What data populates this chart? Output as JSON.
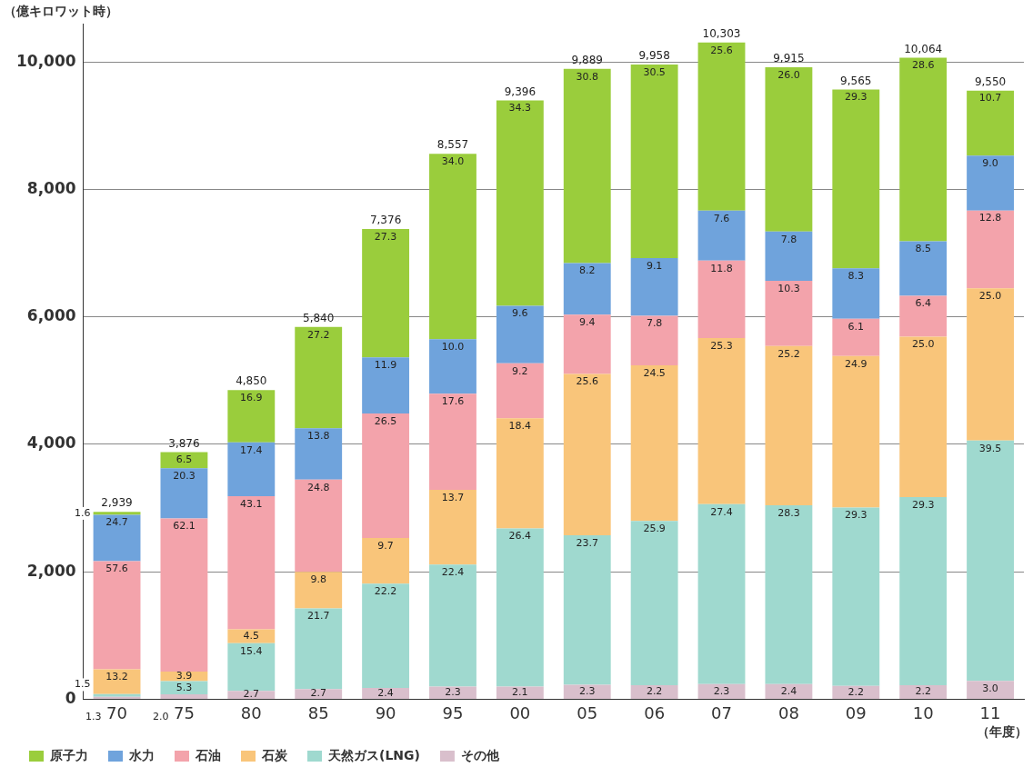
{
  "chart_data": {
    "type": "bar",
    "stacked": true,
    "ylabel": "（億キロワット時）",
    "xlabel": "（年度）",
    "categories": [
      "70",
      "75",
      "80",
      "85",
      "90",
      "95",
      "00",
      "05",
      "06",
      "07",
      "08",
      "09",
      "10",
      "11"
    ],
    "ylim": [
      0,
      10600
    ],
    "yticks": [
      {
        "value": 0,
        "label": "0"
      },
      {
        "value": 2000,
        "label": "2,000"
      },
      {
        "value": 4000,
        "label": "4,000"
      },
      {
        "value": 6000,
        "label": "6,000"
      },
      {
        "value": 8000,
        "label": "8,000"
      },
      {
        "value": 10000,
        "label": "10,000"
      }
    ],
    "grid": "y",
    "legend": "bottom left",
    "totals": [
      "2,939",
      "3,876",
      "4,850",
      "5,840",
      "7,376",
      "8,557",
      "9,396",
      "9,889",
      "9,958",
      "10,303",
      "9,915",
      "9,565",
      "10,064",
      "9,550"
    ],
    "series": [
      {
        "name": "その他",
        "color": "#d9bfcc",
        "values": [
          38,
          78,
          131,
          158,
          177,
          197,
          197,
          227,
          219,
          237,
          238,
          210,
          221,
          287
        ]
      },
      {
        "name": "天然ガス(LNG)",
        "color": "#9fd9cf",
        "values": [
          44,
          205,
          747,
          1267,
          1637,
          1917,
          2481,
          2344,
          2579,
          2822,
          2806,
          2798,
          2950,
          3771
        ]
      },
      {
        "name": "石炭",
        "color": "#f9c57a",
        "values": [
          388,
          151,
          218,
          572,
          715,
          1172,
          1729,
          2532,
          2440,
          2607,
          2499,
          2377,
          2516,
          2388
        ]
      },
      {
        "name": "石油",
        "color": "#f3a3ab",
        "values": [
          1696,
          2403,
          2090,
          1448,
          1955,
          1506,
          864,
          930,
          777,
          1216,
          1021,
          583,
          644,
          1222
        ]
      },
      {
        "name": "水力",
        "color": "#6fa3dc",
        "values": [
          726,
          787,
          844,
          806,
          878,
          856,
          902,
          811,
          906,
          783,
          773,
          794,
          855,
          860
        ]
      },
      {
        "name": "原子力",
        "color": "#9acd3c",
        "values": [
          47,
          252,
          820,
          1589,
          2014,
          2909,
          3223,
          3045,
          3037,
          2638,
          2578,
          2803,
          2878,
          1022
        ]
      }
    ],
    "annotations": [
      {
        "text": "1.3",
        "x": "70",
        "y": 38
      },
      {
        "text": "1.5",
        "x": "70",
        "y": 82
      },
      {
        "text": "13.2",
        "x": "70",
        "y": 470
      },
      {
        "text": "57.6",
        "x": "70",
        "y": 2166
      },
      {
        "text": "24.7",
        "x": "70",
        "y": 2892
      },
      {
        "text": "1.6",
        "x": "70",
        "y": 2939
      },
      {
        "text": "2.0",
        "x": "75",
        "y": 78
      },
      {
        "text": "5.3",
        "x": "75",
        "y": 283
      },
      {
        "text": "3.9",
        "x": "75",
        "y": 434
      },
      {
        "text": "62.1",
        "x": "75",
        "y": 2837
      },
      {
        "text": "20.3",
        "x": "75",
        "y": 3624
      },
      {
        "text": "6.5",
        "x": "75",
        "y": 3876
      },
      {
        "text": "2.7",
        "x": "80",
        "y": 131
      },
      {
        "text": "15.4",
        "x": "80",
        "y": 878
      },
      {
        "text": "4.5",
        "x": "80",
        "y": 1096
      },
      {
        "text": "43.1",
        "x": "80",
        "y": 3186
      },
      {
        "text": "17.4",
        "x": "80",
        "y": 4030
      },
      {
        "text": "16.9",
        "x": "80",
        "y": 4850
      },
      {
        "text": "2.7",
        "x": "85",
        "y": 158
      },
      {
        "text": "21.7",
        "x": "85",
        "y": 1425
      },
      {
        "text": "9.8",
        "x": "85",
        "y": 1997
      },
      {
        "text": "24.8",
        "x": "85",
        "y": 3445
      },
      {
        "text": "13.8",
        "x": "85",
        "y": 4251
      },
      {
        "text": "27.2",
        "x": "85",
        "y": 5840
      },
      {
        "text": "2.4",
        "x": "90",
        "y": 177
      },
      {
        "text": "22.2",
        "x": "90",
        "y": 1814
      },
      {
        "text": "9.7",
        "x": "90",
        "y": 2529
      },
      {
        "text": "26.5",
        "x": "90",
        "y": 4484
      },
      {
        "text": "11.9",
        "x": "90",
        "y": 5362
      },
      {
        "text": "27.3",
        "x": "90",
        "y": 7376
      },
      {
        "text": "2.3",
        "x": "95",
        "y": 197
      },
      {
        "text": "22.4",
        "x": "95",
        "y": 2114
      },
      {
        "text": "13.7",
        "x": "95",
        "y": 3286
      },
      {
        "text": "17.6",
        "x": "95",
        "y": 4792
      },
      {
        "text": "10.0",
        "x": "95",
        "y": 5648
      },
      {
        "text": "34.0",
        "x": "95",
        "y": 8557
      },
      {
        "text": "2.1",
        "x": "00",
        "y": 197
      },
      {
        "text": "26.4",
        "x": "00",
        "y": 2678
      },
      {
        "text": "18.4",
        "x": "00",
        "y": 4407
      },
      {
        "text": "9.2",
        "x": "00",
        "y": 5271
      },
      {
        "text": "9.6",
        "x": "00",
        "y": 6173
      },
      {
        "text": "34.3",
        "x": "00",
        "y": 9396
      },
      {
        "text": "2.3",
        "x": "05",
        "y": 227
      },
      {
        "text": "23.7",
        "x": "05",
        "y": 2571
      },
      {
        "text": "25.6",
        "x": "05",
        "y": 5103
      },
      {
        "text": "9.4",
        "x": "05",
        "y": 6033
      },
      {
        "text": "8.2",
        "x": "05",
        "y": 6844
      },
      {
        "text": "30.8",
        "x": "05",
        "y": 9889
      },
      {
        "text": "2.2",
        "x": "06",
        "y": 219
      },
      {
        "text": "25.9",
        "x": "06",
        "y": 2798
      },
      {
        "text": "24.5",
        "x": "06",
        "y": 5238
      },
      {
        "text": "7.8",
        "x": "06",
        "y": 6015
      },
      {
        "text": "9.1",
        "x": "06",
        "y": 6921
      },
      {
        "text": "30.5",
        "x": "06",
        "y": 9958
      },
      {
        "text": "2.3",
        "x": "07",
        "y": 237
      },
      {
        "text": "27.4",
        "x": "07",
        "y": 3059
      },
      {
        "text": "25.3",
        "x": "07",
        "y": 5666
      },
      {
        "text": "11.8",
        "x": "07",
        "y": 6882
      },
      {
        "text": "7.6",
        "x": "07",
        "y": 7665
      },
      {
        "text": "25.6",
        "x": "07",
        "y": 10303
      },
      {
        "text": "2.4",
        "x": "08",
        "y": 238
      },
      {
        "text": "28.3",
        "x": "08",
        "y": 3044
      },
      {
        "text": "25.2",
        "x": "08",
        "y": 5543
      },
      {
        "text": "10.3",
        "x": "08",
        "y": 6564
      },
      {
        "text": "7.8",
        "x": "08",
        "y": 7337
      },
      {
        "text": "26.0",
        "x": "08",
        "y": 9915
      },
      {
        "text": "2.2",
        "x": "09",
        "y": 210
      },
      {
        "text": "29.3",
        "x": "09",
        "y": 3008
      },
      {
        "text": "24.9",
        "x": "09",
        "y": 5385
      },
      {
        "text": "6.1",
        "x": "09",
        "y": 5968
      },
      {
        "text": "8.3",
        "x": "09",
        "y": 6762
      },
      {
        "text": "29.3",
        "x": "09",
        "y": 9565
      },
      {
        "text": "2.2",
        "x": "10",
        "y": 221
      },
      {
        "text": "29.3",
        "x": "10",
        "y": 3171
      },
      {
        "text": "25.0",
        "x": "10",
        "y": 5687
      },
      {
        "text": "6.4",
        "x": "10",
        "y": 6331
      },
      {
        "text": "8.5",
        "x": "10",
        "y": 7186
      },
      {
        "text": "28.6",
        "x": "10",
        "y": 10064
      },
      {
        "text": "3.0",
        "x": "11",
        "y": 287
      },
      {
        "text": "39.5",
        "x": "11",
        "y": 4058
      },
      {
        "text": "25.0",
        "x": "11",
        "y": 6446
      },
      {
        "text": "12.8",
        "x": "11",
        "y": 7668
      },
      {
        "text": "9.0",
        "x": "11",
        "y": 8528
      },
      {
        "text": "10.7",
        "x": "11",
        "y": 9550
      }
    ]
  }
}
